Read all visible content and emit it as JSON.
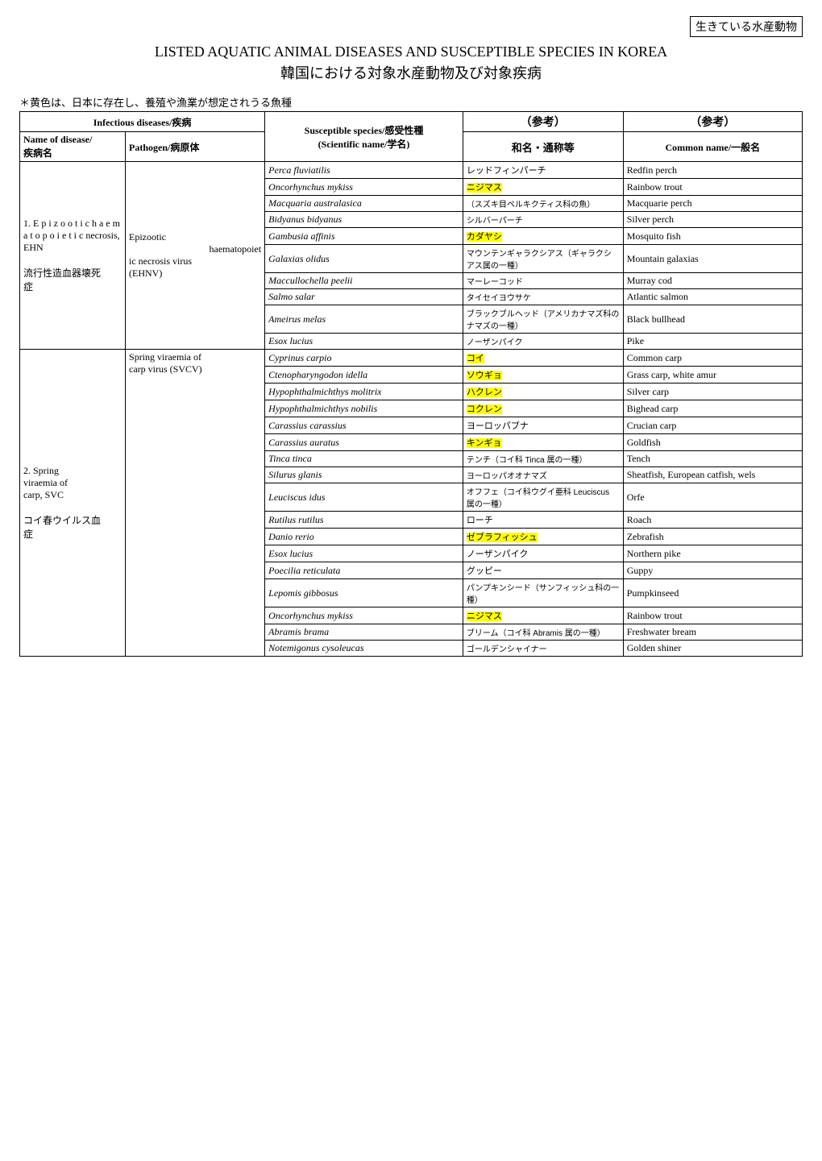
{
  "header": {
    "top_right_box": "生きている水産動物",
    "title_en": "LISTED AQUATIC ANIMAL DISEASES AND SUSCEPTIBLE SPECIES IN KOREA",
    "title_jp": "韓国における対象水産動物及び対象疾病",
    "note": "＊黄色は、日本に存在し、養殖や漁業が想定されうる魚種"
  },
  "table": {
    "head": {
      "disease_top": "Infectious diseases/疾病",
      "species_top_a": "Susceptible species/感受性種",
      "species_top_b": "(Scientific name/学名)",
      "ref1_label": "（参考）",
      "ref2_label": "（参考）",
      "name_of_disease_a": "Name of disease/",
      "name_of_disease_b": "疾病名",
      "pathogen_a": "Pathogen/病原体",
      "wamei": "和名・通称等",
      "common": "Common name/一般名"
    },
    "group1": {
      "disease_en": "1. E p i z o o t i c h a e m a t o p o i e t i c necrosis, EHN",
      "disease_jp_a": "流行性造血器壊死",
      "disease_jp_b": "症",
      "pathogen_a": "Epizootic",
      "pathogen_b": "haematopoiet",
      "pathogen_c": "ic necrosis virus",
      "pathogen_d": "(EHNV)",
      "rows": [
        {
          "sci": "Perca fluviatilis",
          "jp": "レッドフィンパーチ",
          "jp_hl": false,
          "en": "Redfin perch"
        },
        {
          "sci": "Oncorhynchus mykiss",
          "jp": "ニジマス",
          "jp_hl": true,
          "en": "Rainbow trout"
        },
        {
          "sci": "Macquaria australasica",
          "jp": "（スズキ目ペルキクティス科の魚）",
          "jp_hl": false,
          "en": "Macquarie perch"
        },
        {
          "sci": "Bidyanus bidyanus",
          "jp": "シルバーパーチ",
          "jp_hl": false,
          "en": "Silver perch"
        },
        {
          "sci": "Gambusia affinis",
          "jp": "カダヤシ",
          "jp_hl": true,
          "en": "Mosquito fish"
        },
        {
          "sci": "Galaxias olidus",
          "jp": "マウンテンギャラクシアス（ギャラクシアス属の一種）",
          "jp_hl": false,
          "en": "Mountain galaxias"
        },
        {
          "sci": "Maccullochella peelii",
          "jp": "マーレーコッド",
          "jp_hl": false,
          "en": "Murray cod"
        },
        {
          "sci": "Salmo salar",
          "jp": "タイセイヨウサケ",
          "jp_hl": false,
          "en": "Atlantic salmon"
        },
        {
          "sci": "Ameirus melas",
          "jp": "ブラックブルヘッド（アメリカナマズ科のナマズの一種）",
          "jp_hl": false,
          "en": "Black bullhead"
        },
        {
          "sci": "Esox lucius",
          "jp": "ノーザンパイク",
          "jp_hl": false,
          "en": "Pike"
        }
      ]
    },
    "group2": {
      "disease_en_a": "2.   Spring",
      "disease_en_b": "     viraemia of",
      "disease_en_c": "carp, SVC",
      "disease_jp_a": "コイ春ウイルス血",
      "disease_jp_b": "症",
      "pathogen_a": "Spring viraemia of",
      "pathogen_b": "carp virus (SVCV)",
      "rows": [
        {
          "sci": "Cyprinus carpio",
          "jp": "コイ",
          "jp_hl": true,
          "en": "Common carp"
        },
        {
          "sci": "Ctenopharyngodon idella",
          "jp": "ソウギョ",
          "jp_hl": true,
          "en": "Grass carp, white amur"
        },
        {
          "sci": "Hypophthalmichthys molitrix",
          "jp": "ハクレン",
          "jp_hl": true,
          "en": "Silver carp"
        },
        {
          "sci": "Hypophthalmichthys nobilis",
          "jp": "コクレン",
          "jp_hl": true,
          "en": "Bighead carp"
        },
        {
          "sci": "Carassius carassius",
          "jp": "ヨーロッパブナ",
          "jp_hl": false,
          "en": "Crucian carp"
        },
        {
          "sci": "Carassius auratus",
          "jp": "キンギョ",
          "jp_hl": true,
          "en": "Goldfish"
        },
        {
          "sci": "Tinca tinca",
          "jp": "テンチ（コイ科 Tinca 属の一種）",
          "jp_hl": false,
          "en": "Tench"
        },
        {
          "sci": "Silurus glanis",
          "jp": "ヨーロッパオオナマズ",
          "jp_hl": false,
          "en": "Sheatfish, European catfish, wels"
        },
        {
          "sci": "Leuciscus idus",
          "jp": "オフフェ（コイ科ウグイ亜科 Leuciscus 属の一種）",
          "jp_hl": false,
          "en": "Orfe"
        },
        {
          "sci": "Rutilus rutilus",
          "jp": "ローチ",
          "jp_hl": false,
          "en": "Roach"
        },
        {
          "sci": "Danio rerio",
          "jp": "ゼブラフィッシュ",
          "jp_hl": true,
          "en": "Zebrafish"
        },
        {
          "sci": "Esox lucius",
          "jp": "ノーザンパイク",
          "jp_hl": false,
          "en": "Northern pike"
        },
        {
          "sci": "Poecilia reticulata",
          "jp": "グッピー",
          "jp_hl": false,
          "en": "Guppy"
        },
        {
          "sci": "Lepomis gibbosus",
          "jp": "パンプキンシード（サンフィッシュ科の一種）",
          "jp_hl": false,
          "en": "Pumpkinseed"
        },
        {
          "sci": "Oncorhynchus mykiss",
          "jp": "ニジマス",
          "jp_hl": true,
          "en": "Rainbow trout"
        },
        {
          "sci": "Abramis brama",
          "jp": "ブリーム（コイ科 Abramis 属の一種）",
          "jp_hl": false,
          "en": "Freshwater bream"
        },
        {
          "sci": "Notemigonus cysoleucas",
          "jp": "ゴールデンシャイナー",
          "jp_hl": false,
          "en": "Golden shiner"
        }
      ]
    }
  },
  "colors": {
    "highlight": "#ffff00",
    "border": "#000000",
    "bg": "#ffffff",
    "text": "#000000"
  }
}
